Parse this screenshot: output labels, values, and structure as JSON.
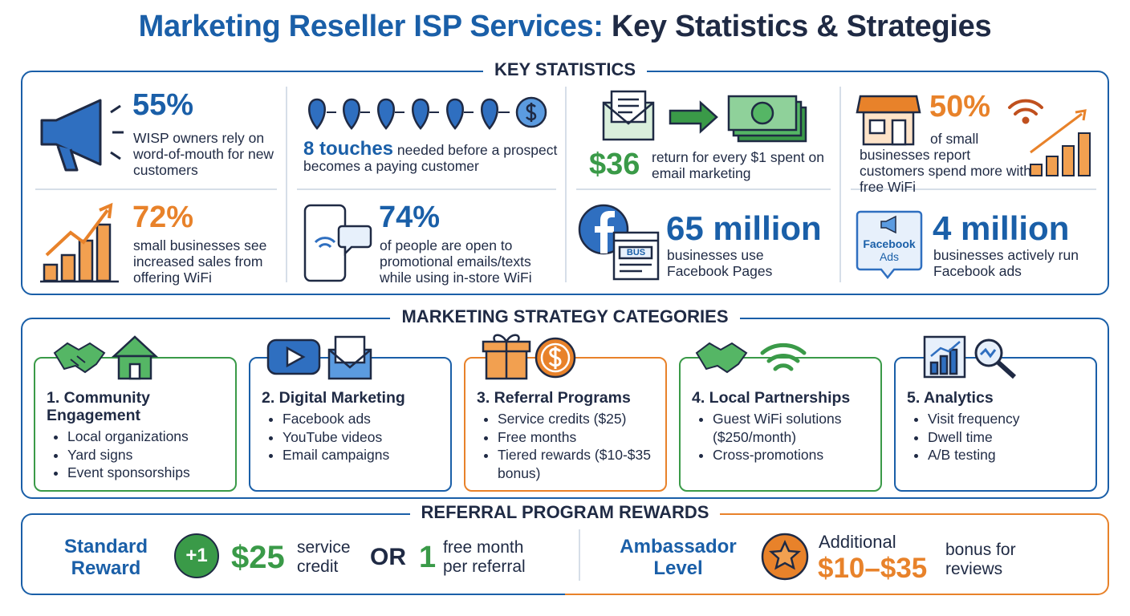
{
  "header": {
    "title_lead": "Marketing Reseller ISP Services:",
    "title_rest": "Key Statistics & Strategies"
  },
  "key_statistics": {
    "heading": "KEY STATISTICS",
    "items": [
      {
        "value": "55%",
        "text": "WISP owners rely on word-of-mouth for new customers"
      },
      {
        "value": "8 touches",
        "text": "needed before a prospect becomes a paying customer"
      },
      {
        "value": "$36",
        "text": "return for every $1 spent on email marketing"
      },
      {
        "value": "50%",
        "text": "of small businesses report customers spend more with free WiFi"
      },
      {
        "value": "72%",
        "text": "small businesses see increased sales from offering WiFi"
      },
      {
        "value": "74%",
        "text": "of people are open to promotional emails/texts while using in-store WiFi"
      },
      {
        "value": "65 million",
        "text": "businesses use Facebook Pages",
        "icon_label": "BUS"
      },
      {
        "value": "4 million",
        "text": "businesses actively run Facebook ads",
        "icon_label": [
          "Facebook",
          "Ads"
        ]
      }
    ]
  },
  "strategies": {
    "heading": "MARKETING STRATEGY CATEGORIES",
    "categories": [
      {
        "title": "1. Community Engagement",
        "bullets": [
          "Local organizations",
          "Yard signs",
          "Event sponsorships"
        ]
      },
      {
        "title": "2. Digital Marketing",
        "bullets": [
          "Facebook ads",
          "YouTube videos",
          "Email campaigns"
        ]
      },
      {
        "title": "3. Referral Programs",
        "bullets": [
          "Service credits ($25)",
          "Free months",
          "Tiered rewards ($10-$35 bonus)"
        ]
      },
      {
        "title": "4. Local Partnerships",
        "bullets": [
          "Guest WiFi solutions ($250/month)",
          "Cross-promotions"
        ]
      },
      {
        "title": "5. Analytics",
        "bullets": [
          "Visit frequency",
          "Dwell time",
          "A/B testing"
        ]
      }
    ]
  },
  "rewards": {
    "heading": "REFERRAL PROGRAM REWARDS",
    "standard": {
      "label": "Standard Reward",
      "badge": "+1",
      "amount": "$25",
      "amount_note": "service credit",
      "connector": "OR",
      "alternative": "1",
      "alternative_note": "free month per referral"
    },
    "ambassador": {
      "label": "Ambassador Level",
      "lead": "Additional",
      "amount": "$10–$35",
      "note": "bonus for reviews"
    }
  }
}
